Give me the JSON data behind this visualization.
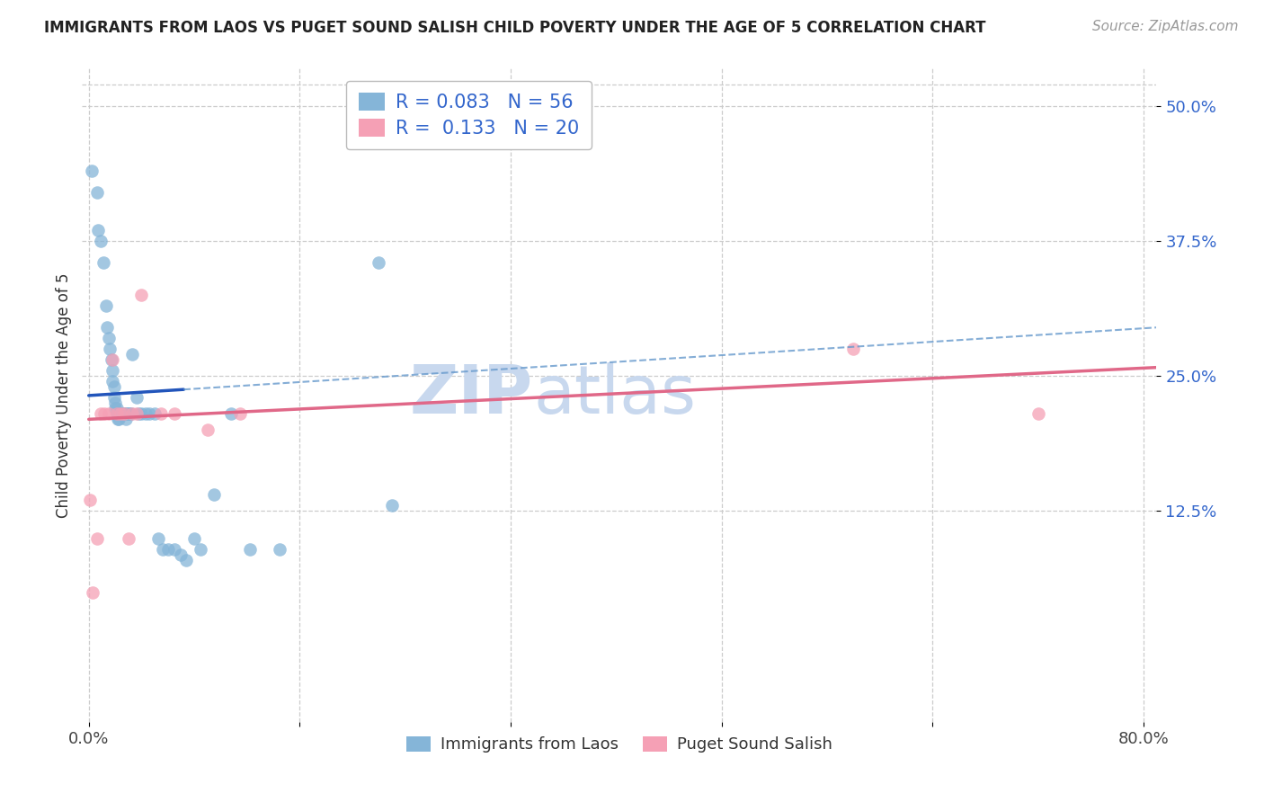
{
  "title": "IMMIGRANTS FROM LAOS VS PUGET SOUND SALISH CHILD POVERTY UNDER THE AGE OF 5 CORRELATION CHART",
  "source": "Source: ZipAtlas.com",
  "ylabel": "Child Poverty Under the Age of 5",
  "xlim": [
    -0.005,
    0.81
  ],
  "ylim": [
    -0.07,
    0.535
  ],
  "xtick_positions": [
    0.0,
    0.16,
    0.32,
    0.48,
    0.64,
    0.8
  ],
  "xticklabels": [
    "0.0%",
    "",
    "",
    "",
    "",
    "80.0%"
  ],
  "ytick_positions": [
    0.125,
    0.25,
    0.375,
    0.5
  ],
  "ytick_labels": [
    "12.5%",
    "25.0%",
    "37.5%",
    "50.0%"
  ],
  "grid_color": "#cccccc",
  "bg_color": "#ffffff",
  "watermark_zip": "ZIP",
  "watermark_atlas": "atlas",
  "watermark_color": "#c8d8ee",
  "series1_label": "Immigrants from Laos",
  "series2_label": "Puget Sound Salish",
  "R1": 0.083,
  "N1": 56,
  "R2": 0.133,
  "N2": 20,
  "color1": "#85b5d8",
  "color2": "#f5a0b5",
  "line1_color": "#2255bb",
  "line2_color": "#e06888",
  "line1_dashed_color": "#6699cc",
  "scatter1_x": [
    0.002,
    0.006,
    0.007,
    0.009,
    0.011,
    0.013,
    0.014,
    0.015,
    0.016,
    0.017,
    0.018,
    0.018,
    0.019,
    0.019,
    0.02,
    0.02,
    0.021,
    0.021,
    0.022,
    0.022,
    0.022,
    0.023,
    0.023,
    0.024,
    0.024,
    0.025,
    0.025,
    0.026,
    0.027,
    0.028,
    0.028,
    0.029,
    0.03,
    0.031,
    0.032,
    0.033,
    0.036,
    0.038,
    0.04,
    0.043,
    0.046,
    0.05,
    0.053,
    0.056,
    0.06,
    0.065,
    0.07,
    0.074,
    0.08,
    0.085,
    0.095,
    0.108,
    0.122,
    0.145,
    0.22,
    0.23
  ],
  "scatter1_y": [
    0.44,
    0.42,
    0.385,
    0.375,
    0.355,
    0.315,
    0.295,
    0.285,
    0.275,
    0.265,
    0.255,
    0.245,
    0.24,
    0.23,
    0.225,
    0.22,
    0.22,
    0.215,
    0.215,
    0.215,
    0.21,
    0.215,
    0.21,
    0.215,
    0.215,
    0.215,
    0.215,
    0.215,
    0.215,
    0.215,
    0.21,
    0.215,
    0.215,
    0.215,
    0.215,
    0.27,
    0.23,
    0.215,
    0.215,
    0.215,
    0.215,
    0.215,
    0.1,
    0.09,
    0.09,
    0.09,
    0.085,
    0.08,
    0.1,
    0.09,
    0.14,
    0.215,
    0.09,
    0.09,
    0.355,
    0.13
  ],
  "scatter2_x": [
    0.001,
    0.003,
    0.006,
    0.009,
    0.012,
    0.015,
    0.018,
    0.021,
    0.024,
    0.027,
    0.03,
    0.033,
    0.036,
    0.04,
    0.055,
    0.065,
    0.09,
    0.115,
    0.58,
    0.72
  ],
  "scatter2_y": [
    0.135,
    0.05,
    0.1,
    0.215,
    0.215,
    0.215,
    0.265,
    0.215,
    0.215,
    0.215,
    0.1,
    0.215,
    0.215,
    0.325,
    0.215,
    0.215,
    0.2,
    0.215,
    0.275,
    0.215
  ],
  "trend1_solid_x0": 0.0,
  "trend1_solid_x1": 0.072,
  "trend1_dash_x1": 0.81,
  "trend1_y0": 0.232,
  "trend1_y1": 0.295,
  "trend2_x0": 0.0,
  "trend2_x1": 0.81,
  "trend2_y0": 0.21,
  "trend2_y1": 0.258,
  "title_fontsize": 12,
  "source_fontsize": 11,
  "ylabel_fontsize": 12,
  "tick_fontsize": 13,
  "legend_fontsize": 15
}
